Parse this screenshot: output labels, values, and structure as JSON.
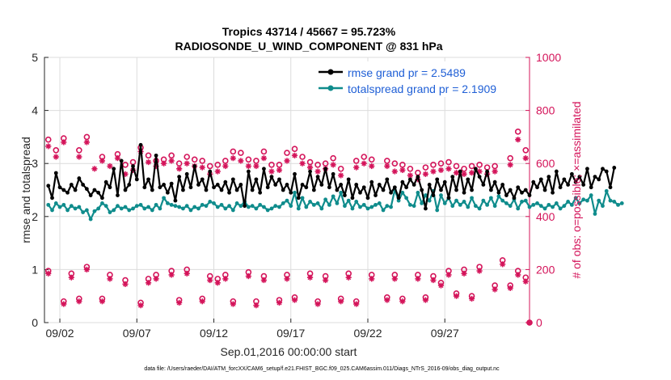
{
  "chart_data": {
    "type": "line",
    "title_line1": "Tropics 43714 / 45667 = 95.723%",
    "title_line2": "RADIOSONDE_U_WIND_COMPONENT @ 831 hPa",
    "xlabel": "Sep.01,2016 00:00:00 start",
    "ylabel_left": "rmse and totalspread",
    "ylabel_right": "# of obs: o=possible; ×=assimilated",
    "footer": "data file: /Users/raeder/DAI/ATM_forcXX/CAM6_setup/f.e21.FHIST_BGC.f09_025.CAM6assim.011/Diags_NTrS_2016-09/obs_diag_output.nc",
    "x_range": [
      0,
      31.5
    ],
    "ylim_left": [
      0,
      5
    ],
    "ylim_right": [
      0,
      1000
    ],
    "left_ticks": [
      "0",
      "1",
      "2",
      "3",
      "4",
      "5"
    ],
    "right_ticks": [
      "0",
      "200",
      "400",
      "600",
      "800",
      "1000"
    ],
    "x_ticks": [
      {
        "label": "09/02",
        "day": 1
      },
      {
        "label": "09/07",
        "day": 6
      },
      {
        "label": "09/12",
        "day": 11
      },
      {
        "label": "09/17",
        "day": 16
      },
      {
        "label": "09/22",
        "day": 21
      },
      {
        "label": "09/27",
        "day": 26
      }
    ],
    "time_step_days": 0.25,
    "time_start_day": 0.25,
    "series": [
      {
        "name": "rmse grand pr = 2.5489",
        "color": "#000000",
        "axis": "left",
        "values": [
          2.58,
          2.35,
          2.82,
          2.55,
          2.5,
          2.45,
          2.6,
          2.5,
          2.72,
          2.6,
          2.52,
          2.4,
          2.5,
          2.45,
          2.35,
          2.65,
          2.55,
          2.9,
          2.4,
          3.05,
          2.5,
          2.6,
          2.95,
          2.7,
          3.35,
          2.55,
          2.7,
          2.5,
          3.15,
          2.55,
          2.6,
          2.45,
          2.62,
          2.3,
          2.75,
          2.5,
          2.8,
          2.55,
          2.95,
          2.6,
          2.7,
          2.5,
          2.85,
          2.55,
          2.6,
          2.5,
          2.65,
          2.45,
          2.7,
          2.5,
          2.6,
          2.2,
          2.85,
          2.5,
          2.7,
          2.45,
          2.9,
          2.55,
          2.75,
          2.6,
          2.7,
          2.5,
          2.6,
          2.45,
          2.8,
          2.35,
          2.6,
          2.55,
          2.85,
          2.5,
          2.75,
          2.6,
          2.9,
          2.55,
          2.8,
          2.5,
          2.6,
          2.4,
          2.7,
          2.35,
          2.6,
          2.45,
          2.55,
          2.35,
          2.65,
          2.4,
          2.6,
          2.5,
          2.7,
          2.45,
          2.55,
          2.35,
          2.65,
          2.55,
          2.7,
          2.6,
          2.75,
          2.5,
          2.15,
          2.6,
          2.4,
          2.7,
          2.5,
          2.65,
          2.35,
          2.75,
          2.5,
          2.85,
          2.45,
          2.7,
          2.5,
          2.9,
          2.75,
          2.6,
          2.85,
          2.5,
          2.65,
          2.45,
          2.6,
          2.4,
          2.5,
          2.35,
          2.55,
          2.45,
          2.5,
          2.4,
          2.65,
          2.55,
          2.7,
          2.5,
          2.75,
          2.45,
          2.85,
          2.55,
          2.7,
          2.6,
          2.8,
          2.65,
          2.75,
          2.6,
          2.9,
          2.55,
          2.75,
          2.7,
          2.9,
          2.85,
          2.55,
          2.92
        ]
      },
      {
        "name": "totalspread grand pr = 2.1909",
        "color": "#0f8c8c",
        "axis": "left",
        "values": [
          2.22,
          2.12,
          2.25,
          2.18,
          2.22,
          2.12,
          2.2,
          2.15,
          2.18,
          2.08,
          2.12,
          1.95,
          2.1,
          2.15,
          2.25,
          2.2,
          2.08,
          2.12,
          2.2,
          2.15,
          2.18,
          2.12,
          2.15,
          2.2,
          2.22,
          2.15,
          2.18,
          2.12,
          2.22,
          2.15,
          2.35,
          2.25,
          2.22,
          2.2,
          2.18,
          2.15,
          2.2,
          2.12,
          2.18,
          2.15,
          2.22,
          2.2,
          2.28,
          2.25,
          2.18,
          2.22,
          2.15,
          2.2,
          2.12,
          2.25,
          2.2,
          2.28,
          2.18,
          2.2,
          2.15,
          2.22,
          2.18,
          2.12,
          2.15,
          2.2,
          2.18,
          2.25,
          2.3,
          2.2,
          2.45,
          2.15,
          2.35,
          2.18,
          2.28,
          2.22,
          2.25,
          2.15,
          2.32,
          2.22,
          2.38,
          2.25,
          2.45,
          2.2,
          2.3,
          2.15,
          2.28,
          2.18,
          2.22,
          2.15,
          2.18,
          2.22,
          2.25,
          2.12,
          2.2,
          2.18,
          2.5,
          2.3,
          2.45,
          2.35,
          2.22,
          2.2,
          2.45,
          2.25,
          2.4,
          2.3,
          2.48,
          2.12,
          2.4,
          2.25,
          2.35,
          2.2,
          2.3,
          2.22,
          2.28,
          2.18,
          2.35,
          2.2,
          2.15,
          2.3,
          2.22,
          2.35,
          2.2,
          2.38,
          2.3,
          2.25,
          2.2,
          2.32,
          2.15,
          2.28,
          2.3,
          2.18,
          2.22,
          2.25,
          2.2,
          2.15,
          2.22,
          2.18,
          2.25,
          2.15,
          2.2,
          2.28,
          2.22,
          2.35,
          2.25,
          2.32,
          2.3,
          2.4,
          2.05,
          2.3,
          2.2,
          2.48,
          2.3,
          2.28,
          2.22,
          2.25
        ]
      },
      {
        "name": "possible obs (upper cluster)",
        "color": "#d4145a",
        "axis": "right",
        "marker": "circle",
        "points": [
          [
            0.25,
            690
          ],
          [
            0.75,
            650
          ],
          [
            1.25,
            695
          ],
          [
            2.25,
            650
          ],
          [
            2.75,
            700
          ],
          [
            3.75,
            625
          ],
          [
            4.75,
            635
          ],
          [
            5.25,
            595
          ],
          [
            5.75,
            605
          ],
          [
            6.25,
            660
          ],
          [
            6.75,
            630
          ],
          [
            7.25,
            610
          ],
          [
            7.75,
            615
          ],
          [
            8.25,
            630
          ],
          [
            8.75,
            600
          ],
          [
            9.25,
            625
          ],
          [
            9.75,
            615
          ],
          [
            10.25,
            610
          ],
          [
            10.75,
            590
          ],
          [
            11.25,
            595
          ],
          [
            11.75,
            610
          ],
          [
            12.25,
            645
          ],
          [
            12.75,
            640
          ],
          [
            13.25,
            615
          ],
          [
            13.75,
            610
          ],
          [
            14.25,
            645
          ],
          [
            14.75,
            595
          ],
          [
            15.25,
            595
          ],
          [
            15.75,
            640
          ],
          [
            16.25,
            655
          ],
          [
            16.75,
            625
          ],
          [
            17.25,
            605
          ],
          [
            17.75,
            595
          ],
          [
            18.25,
            600
          ],
          [
            18.75,
            620
          ],
          [
            19.25,
            580
          ],
          [
            20.25,
            610
          ],
          [
            20.75,
            625
          ],
          [
            21.25,
            615
          ],
          [
            22.25,
            610
          ],
          [
            22.75,
            600
          ],
          [
            23.25,
            595
          ],
          [
            23.75,
            580
          ],
          [
            24.25,
            565
          ],
          [
            24.75,
            585
          ],
          [
            25.25,
            595
          ],
          [
            25.75,
            600
          ],
          [
            26.25,
            605
          ],
          [
            26.75,
            590
          ],
          [
            27.25,
            580
          ],
          [
            27.75,
            590
          ],
          [
            28.25,
            595
          ],
          [
            28.75,
            585
          ],
          [
            29.25,
            590
          ],
          [
            30.25,
            620
          ],
          [
            30.75,
            720
          ],
          [
            31.25,
            650
          ]
        ]
      },
      {
        "name": "assimilated obs (upper cluster)",
        "color": "#d4145a",
        "axis": "right",
        "marker": "x",
        "points": [
          [
            0.25,
            665
          ],
          [
            0.75,
            625
          ],
          [
            1.25,
            680
          ],
          [
            2.25,
            625
          ],
          [
            2.75,
            680
          ],
          [
            3.25,
            580
          ],
          [
            3.75,
            610
          ],
          [
            4.25,
            590
          ],
          [
            4.75,
            620
          ],
          [
            5.25,
            560
          ],
          [
            5.75,
            575
          ],
          [
            6.25,
            645
          ],
          [
            6.75,
            605
          ],
          [
            7.25,
            590
          ],
          [
            7.75,
            600
          ],
          [
            8.25,
            610
          ],
          [
            8.75,
            580
          ],
          [
            9.25,
            600
          ],
          [
            9.75,
            590
          ],
          [
            10.25,
            585
          ],
          [
            10.75,
            560
          ],
          [
            11.25,
            570
          ],
          [
            11.75,
            590
          ],
          [
            12.25,
            620
          ],
          [
            12.75,
            610
          ],
          [
            13.25,
            590
          ],
          [
            13.75,
            590
          ],
          [
            14.25,
            620
          ],
          [
            14.75,
            570
          ],
          [
            15.25,
            575
          ],
          [
            15.75,
            610
          ],
          [
            16.25,
            630
          ],
          [
            16.75,
            600
          ],
          [
            17.25,
            585
          ],
          [
            17.75,
            570
          ],
          [
            18.25,
            580
          ],
          [
            18.75,
            595
          ],
          [
            19.25,
            555
          ],
          [
            20.25,
            585
          ],
          [
            20.75,
            600
          ],
          [
            21.25,
            590
          ],
          [
            22.25,
            590
          ],
          [
            22.75,
            570
          ],
          [
            23.25,
            575
          ],
          [
            23.75,
            555
          ],
          [
            24.25,
            540
          ],
          [
            24.75,
            560
          ],
          [
            25.25,
            570
          ],
          [
            25.75,
            575
          ],
          [
            26.25,
            580
          ],
          [
            26.75,
            565
          ],
          [
            27.25,
            560
          ],
          [
            27.75,
            565
          ],
          [
            28.25,
            570
          ],
          [
            28.75,
            560
          ],
          [
            29.25,
            570
          ],
          [
            30.25,
            595
          ],
          [
            30.75,
            690
          ],
          [
            31.25,
            620
          ]
        ]
      },
      {
        "name": "possible obs (lower cluster)",
        "color": "#d4145a",
        "axis": "right",
        "marker": "circle",
        "points": [
          [
            0.25,
            195
          ],
          [
            1.25,
            80
          ],
          [
            1.75,
            185
          ],
          [
            2.25,
            90
          ],
          [
            2.75,
            210
          ],
          [
            3.75,
            90
          ],
          [
            4.25,
            180
          ],
          [
            5.25,
            160
          ],
          [
            6.25,
            75
          ],
          [
            6.75,
            165
          ],
          [
            7.25,
            180
          ],
          [
            8.25,
            195
          ],
          [
            8.75,
            85
          ],
          [
            9.25,
            200
          ],
          [
            10.25,
            90
          ],
          [
            10.75,
            175
          ],
          [
            11.25,
            165
          ],
          [
            11.75,
            180
          ],
          [
            12.25,
            80
          ],
          [
            13.25,
            190
          ],
          [
            13.75,
            80
          ],
          [
            14.25,
            175
          ],
          [
            15.25,
            85
          ],
          [
            15.75,
            180
          ],
          [
            16.25,
            95
          ],
          [
            17.25,
            185
          ],
          [
            17.75,
            80
          ],
          [
            18.25,
            175
          ],
          [
            19.25,
            90
          ],
          [
            19.75,
            185
          ],
          [
            20.25,
            80
          ],
          [
            21.25,
            180
          ],
          [
            22.25,
            95
          ],
          [
            22.75,
            180
          ],
          [
            23.25,
            90
          ],
          [
            24.25,
            180
          ],
          [
            24.75,
            95
          ],
          [
            25.25,
            175
          ],
          [
            25.75,
            150
          ],
          [
            26.25,
            195
          ],
          [
            26.75,
            110
          ],
          [
            27.25,
            200
          ],
          [
            27.75,
            100
          ],
          [
            28.25,
            210
          ],
          [
            29.25,
            140
          ],
          [
            29.75,
            235
          ],
          [
            30.25,
            140
          ],
          [
            30.75,
            195
          ],
          [
            31.25,
            170
          ],
          [
            31.5,
            0
          ]
        ]
      },
      {
        "name": "assimilated obs (lower cluster)",
        "color": "#d4145a",
        "axis": "right",
        "marker": "x",
        "points": [
          [
            0.25,
            185
          ],
          [
            1.25,
            70
          ],
          [
            1.75,
            170
          ],
          [
            2.25,
            80
          ],
          [
            2.75,
            200
          ],
          [
            3.75,
            80
          ],
          [
            4.25,
            165
          ],
          [
            5.25,
            145
          ],
          [
            6.25,
            65
          ],
          [
            6.75,
            150
          ],
          [
            7.25,
            165
          ],
          [
            8.25,
            180
          ],
          [
            8.75,
            75
          ],
          [
            9.25,
            185
          ],
          [
            10.25,
            80
          ],
          [
            10.75,
            160
          ],
          [
            11.25,
            150
          ],
          [
            11.75,
            165
          ],
          [
            12.25,
            70
          ],
          [
            13.25,
            175
          ],
          [
            13.75,
            65
          ],
          [
            14.25,
            160
          ],
          [
            15.25,
            75
          ],
          [
            15.75,
            165
          ],
          [
            16.25,
            85
          ],
          [
            17.25,
            170
          ],
          [
            17.75,
            70
          ],
          [
            18.25,
            160
          ],
          [
            19.25,
            80
          ],
          [
            19.75,
            170
          ],
          [
            20.25,
            70
          ],
          [
            21.25,
            165
          ],
          [
            22.25,
            85
          ],
          [
            22.75,
            165
          ],
          [
            23.25,
            80
          ],
          [
            24.25,
            165
          ],
          [
            24.75,
            85
          ],
          [
            25.25,
            160
          ],
          [
            25.75,
            140
          ],
          [
            26.25,
            180
          ],
          [
            26.75,
            100
          ],
          [
            27.25,
            185
          ],
          [
            27.75,
            90
          ],
          [
            28.25,
            195
          ],
          [
            29.25,
            125
          ],
          [
            29.75,
            220
          ],
          [
            30.25,
            130
          ],
          [
            30.75,
            180
          ],
          [
            31.25,
            155
          ],
          [
            31.5,
            0
          ]
        ]
      }
    ]
  }
}
